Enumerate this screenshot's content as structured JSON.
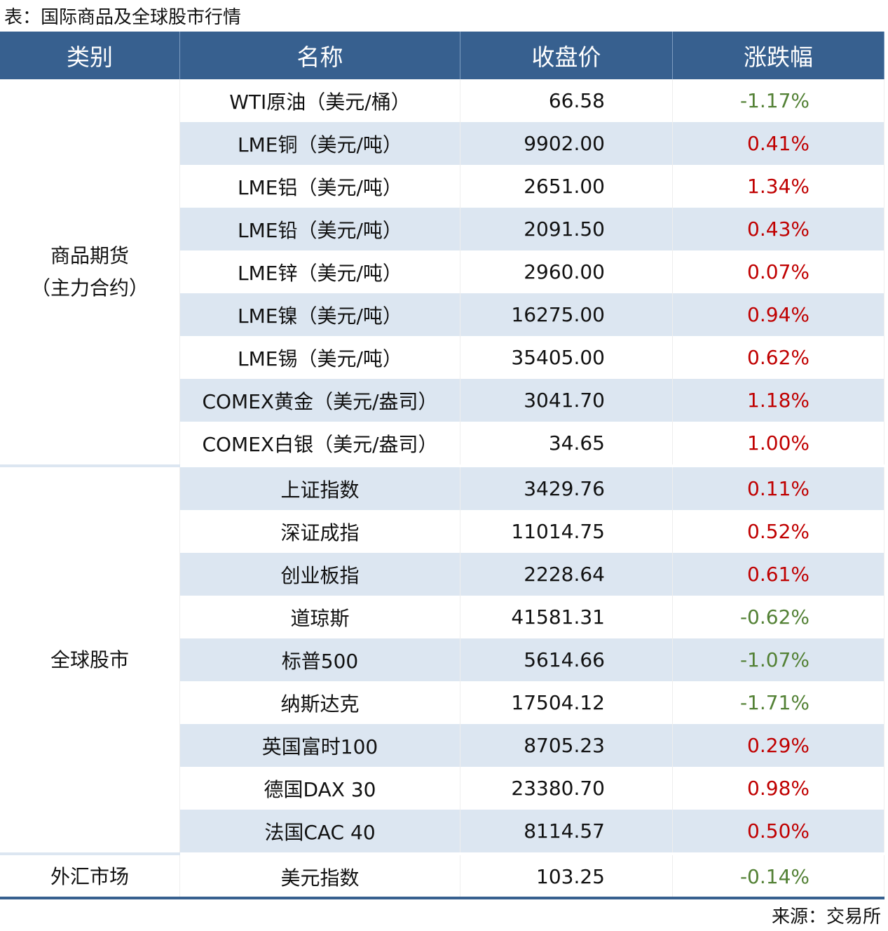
{
  "title": "表：国际商品及全球股市行情",
  "source": "来源：交易所",
  "headers": [
    "类别",
    "名称",
    "收盘价",
    "涨跌幅"
  ],
  "colors": {
    "header": "#37608f",
    "stripe": "#dce6f1",
    "up": "#c00000",
    "down": "#538135"
  },
  "groups": [
    {
      "category": "商品期货\n（主力合约）",
      "rows": [
        [
          "WTI原油（美元/桶）",
          "66.58",
          "-1.17%"
        ],
        [
          "LME铜（美元/吨）",
          "9902.00",
          "0.41%"
        ],
        [
          "LME铝（美元/吨）",
          "2651.00",
          "1.34%"
        ],
        [
          "LME铅（美元/吨）",
          "2091.50",
          "0.43%"
        ],
        [
          "LME锌（美元/吨）",
          "2960.00",
          "0.07%"
        ],
        [
          "LME镍（美元/吨）",
          "16275.00",
          "0.94%"
        ],
        [
          "LME锡（美元/吨）",
          "35405.00",
          "0.62%"
        ],
        [
          "COMEX黄金（美元/盎司）",
          "3041.70",
          "1.18%"
        ],
        [
          "COMEX白银（美元/盎司）",
          "34.65",
          "1.00%"
        ]
      ]
    },
    {
      "category": "全球股市",
      "rows": [
        [
          "上证指数",
          "3429.76",
          "0.11%"
        ],
        [
          "深证成指",
          "11014.75",
          "0.52%"
        ],
        [
          "创业板指",
          "2228.64",
          "0.61%"
        ],
        [
          "道琼斯",
          "41581.31",
          "-0.62%"
        ],
        [
          "标普500",
          "5614.66",
          "-1.07%"
        ],
        [
          "纳斯达克",
          "17504.12",
          "-1.71%"
        ],
        [
          "英国富时100",
          "8705.23",
          "0.29%"
        ],
        [
          "德国DAX 30",
          "23380.70",
          "0.98%"
        ],
        [
          "法国CAC 40",
          "8114.57",
          "0.50%"
        ]
      ]
    },
    {
      "category": "外汇市场",
      "rows": [
        [
          "美元指数",
          "103.25",
          "-0.14%"
        ]
      ]
    }
  ]
}
